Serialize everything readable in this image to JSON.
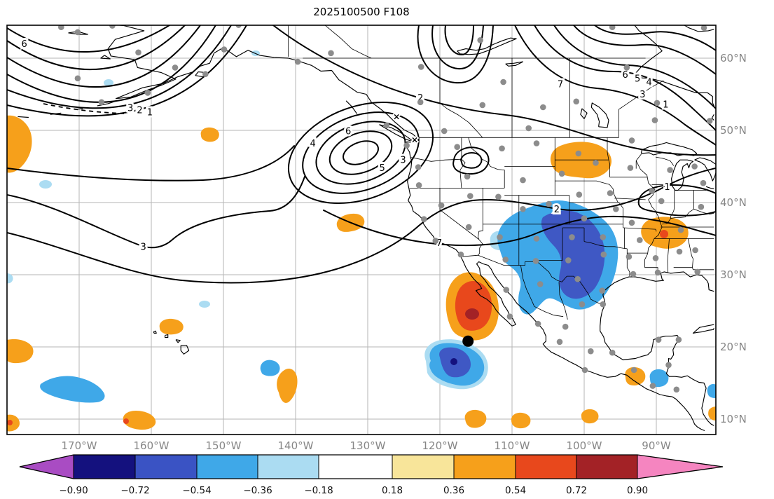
{
  "title": "2025100500 F108",
  "chart_data": {
    "type": "contour-map",
    "title": "2025100500 F108",
    "projection": "equirectangular",
    "lon_range": [
      -180,
      -81.7
    ],
    "lat_range": [
      7.9,
      64.7
    ],
    "grid": true,
    "x_axis": {
      "ticks": [
        {
          "lon": -170,
          "label": "170°W"
        },
        {
          "lon": -160,
          "label": "160°W"
        },
        {
          "lon": -150,
          "label": "150°W"
        },
        {
          "lon": -140,
          "label": "140°W"
        },
        {
          "lon": -130,
          "label": "130°W"
        },
        {
          "lon": -120,
          "label": "120°W"
        },
        {
          "lon": -110,
          "label": "110°W"
        },
        {
          "lon": -100,
          "label": "100°W"
        },
        {
          "lon": -90,
          "label": "90°W"
        }
      ]
    },
    "y_axis": {
      "ticks": [
        {
          "lat": 10,
          "label": "10°N"
        },
        {
          "lat": 20,
          "label": "20°N"
        },
        {
          "lat": 30,
          "label": "30°N"
        },
        {
          "lat": 40,
          "label": "40°N"
        },
        {
          "lat": 50,
          "label": "50°N"
        },
        {
          "lat": 60,
          "label": "60°N"
        }
      ]
    },
    "colorbar": {
      "ticks": [
        "−0.90",
        "−0.72",
        "−0.54",
        "−0.36",
        "−0.18",
        "0.18",
        "0.36",
        "0.54",
        "0.72",
        "0.90"
      ],
      "segment_colors": [
        "#14117E",
        "#3A53C4",
        "#3FA8E8",
        "#ABDCF2",
        "#FFFFFF",
        "#F8E59A",
        "#F6A01B",
        "#E8481C",
        "#A32226"
      ],
      "under_arrow_color": "#A94CC3",
      "over_arrow_color": "#F585C0"
    },
    "contour_labels": [
      {
        "v": "6",
        "lon": -177.6,
        "lat": 62.0
      },
      {
        "v": "3",
        "lon": -162.9,
        "lat": 53.1
      },
      {
        "v": "2",
        "lon": -161.6,
        "lat": 52.8
      },
      {
        "v": "1",
        "lon": -160.2,
        "lat": 52.5
      },
      {
        "v": "2",
        "lon": -122.7,
        "lat": 54.5
      },
      {
        "v": "6",
        "lon": -132.7,
        "lat": 49.9
      },
      {
        "v": "4",
        "lon": -137.6,
        "lat": 48.2
      },
      {
        "v": "5",
        "lon": -128.0,
        "lat": 44.8
      },
      {
        "v": "3",
        "lon": -125.1,
        "lat": 45.9
      },
      {
        "v": "3",
        "lon": -161.1,
        "lat": 33.9
      },
      {
        "v": "7",
        "lon": -120.1,
        "lat": 34.4
      },
      {
        "v": "2",
        "lon": -103.8,
        "lat": 39.1
      },
      {
        "v": "7",
        "lon": -103.3,
        "lat": 56.4
      },
      {
        "v": "6",
        "lon": -94.3,
        "lat": 57.7
      },
      {
        "v": "5",
        "lon": -92.6,
        "lat": 57.2
      },
      {
        "v": "4",
        "lon": -91.0,
        "lat": 56.7
      },
      {
        "v": "3",
        "lon": -91.9,
        "lat": 55.0
      },
      {
        "v": "1",
        "lon": -88.7,
        "lat": 53.6
      },
      {
        "v": "1",
        "lon": -88.5,
        "lat": 42.2
      }
    ],
    "cross_marks": [
      {
        "lon": -126.0,
        "lat": 51.9
      },
      {
        "lon": -123.5,
        "lat": 48.7
      }
    ],
    "storm_marker": {
      "lon": -116.1,
      "lat": 20.8
    },
    "stations": [
      [
        -172.5,
        64.3
      ],
      [
        -170.2,
        63.6
      ],
      [
        -165.4,
        64.5
      ],
      [
        -161.8,
        60.8
      ],
      [
        -149.9,
        61.2
      ],
      [
        -147.9,
        64.6
      ],
      [
        -152.5,
        57.8
      ],
      [
        -156.7,
        58.7
      ],
      [
        -160.5,
        55.2
      ],
      [
        -170.2,
        57.2
      ],
      [
        -166.9,
        53.9
      ],
      [
        -135.1,
        60.7
      ],
      [
        -139.7,
        59.5
      ],
      [
        -122.6,
        58.8
      ],
      [
        -122.7,
        53.9
      ],
      [
        -127.4,
        50.7
      ],
      [
        -119.4,
        49.9
      ],
      [
        -114.1,
        53.5
      ],
      [
        -114.4,
        62.5
      ],
      [
        -111.2,
        56.7
      ],
      [
        -107.7,
        50.3
      ],
      [
        -105.7,
        53.2
      ],
      [
        -101.1,
        54.0
      ],
      [
        -94.1,
        58.7
      ],
      [
        -96.1,
        64.3
      ],
      [
        -90.2,
        51.4
      ],
      [
        -89.9,
        53.8
      ],
      [
        -83.4,
        64.2
      ],
      [
        -82.6,
        51.3
      ],
      [
        -124.6,
        47.9
      ],
      [
        -123.0,
        44.9
      ],
      [
        -122.9,
        42.4
      ],
      [
        -122.2,
        37.7
      ],
      [
        -120.6,
        34.7
      ],
      [
        -117.1,
        32.8
      ],
      [
        -119.8,
        39.6
      ],
      [
        -115.8,
        40.9
      ],
      [
        -116.0,
        36.6
      ],
      [
        -116.2,
        43.6
      ],
      [
        -117.6,
        47.7
      ],
      [
        -111.4,
        47.5
      ],
      [
        -106.6,
        48.2
      ],
      [
        -111.9,
        40.8
      ],
      [
        -111.7,
        35.2
      ],
      [
        -110.9,
        32.1
      ],
      [
        -108.5,
        39.1
      ],
      [
        -104.9,
        39.8
      ],
      [
        -108.5,
        43.1
      ],
      [
        -106.6,
        35.0
      ],
      [
        -106.7,
        31.9
      ],
      [
        -100.8,
        46.8
      ],
      [
        -103.1,
        44.0
      ],
      [
        -98.4,
        45.5
      ],
      [
        -100.7,
        41.1
      ],
      [
        -96.4,
        41.3
      ],
      [
        -100.0,
        37.8
      ],
      [
        -95.6,
        39.1
      ],
      [
        -101.7,
        35.2
      ],
      [
        -102.2,
        32.0
      ],
      [
        -100.9,
        29.4
      ],
      [
        -97.3,
        32.8
      ],
      [
        -97.5,
        27.8
      ],
      [
        -97.4,
        25.9
      ],
      [
        -93.2,
        30.1
      ],
      [
        -93.8,
        32.5
      ],
      [
        -92.3,
        34.8
      ],
      [
        -93.4,
        37.2
      ],
      [
        -97.4,
        35.2
      ],
      [
        -93.6,
        44.8
      ],
      [
        -93.4,
        48.6
      ],
      [
        -88.1,
        44.5
      ],
      [
        -90.6,
        41.6
      ],
      [
        -89.3,
        40.2
      ],
      [
        -86.6,
        36.2
      ],
      [
        -90.1,
        32.3
      ],
      [
        -89.8,
        30.3
      ],
      [
        -86.8,
        33.2
      ],
      [
        -84.7,
        45.0
      ],
      [
        -83.5,
        42.7
      ],
      [
        -83.8,
        39.4
      ],
      [
        -84.6,
        33.4
      ],
      [
        -84.3,
        30.4
      ],
      [
        -110.8,
        27.9
      ],
      [
        -106.1,
        28.7
      ],
      [
        -110.3,
        24.2
      ],
      [
        -106.4,
        23.2
      ],
      [
        -100.3,
        25.9
      ],
      [
        -102.6,
        22.8
      ],
      [
        -103.4,
        20.7
      ],
      [
        -99.1,
        19.4
      ],
      [
        -96.1,
        19.2
      ],
      [
        -99.9,
        16.8
      ],
      [
        -93.1,
        16.8
      ],
      [
        -89.7,
        21.0
      ],
      [
        -86.9,
        21.0
      ],
      [
        -88.3,
        17.5
      ],
      [
        -90.5,
        14.6
      ],
      [
        -87.2,
        14.1
      ]
    ],
    "shaded_regions": [
      {
        "sign": "positive",
        "center_lon": -114.5,
        "center_lat": 25.5,
        "peak": "> 0.72",
        "note": "large maximum west of Baja California"
      },
      {
        "sign": "negative",
        "center_lon": -103.0,
        "center_lat": 32.0,
        "peak": "< -0.54",
        "note": "New Mexico / West Texas / northern Mexico"
      },
      {
        "sign": "negative",
        "center_lon": -117.0,
        "center_lat": 17.5,
        "peak": "< -0.72",
        "note": "south of storm marker"
      },
      {
        "sign": "positive",
        "center_lon": -100.0,
        "center_lat": 45.5,
        "peak": "> 0.36",
        "note": "Montana–Dakotas"
      },
      {
        "sign": "positive",
        "center_lon": -88.5,
        "center_lat": 35.5,
        "peak": "> 0.54",
        "note": "Missouri–Tennessee"
      },
      {
        "sign": "positive",
        "center_lon": -178.0,
        "center_lat": 47.0,
        "peak": "> 0.36",
        "note": "western map edge"
      },
      {
        "sign": "negative",
        "center_lon": -171.0,
        "center_lat": 14.5,
        "peak": "< -0.36",
        "note": "southwest Pacific streak"
      },
      {
        "sign": "positive",
        "center_lon": -157.5,
        "center_lat": 22.5,
        "peak": "> 0.36",
        "note": "near Hawaii"
      },
      {
        "sign": "positive",
        "center_lon": -134.5,
        "center_lat": 37.0,
        "peak": "> 0.36",
        "note": "streak southeast of Pacific low"
      },
      {
        "sign": "positive",
        "center_lon": -141.0,
        "center_lat": 14.0,
        "peak": "> 0.36",
        "note": "tropical spots"
      },
      {
        "sign": "positive",
        "center_lon": -93.0,
        "center_lat": 16.0,
        "peak": "> 0.36",
        "note": "southern Mexico"
      }
    ]
  }
}
